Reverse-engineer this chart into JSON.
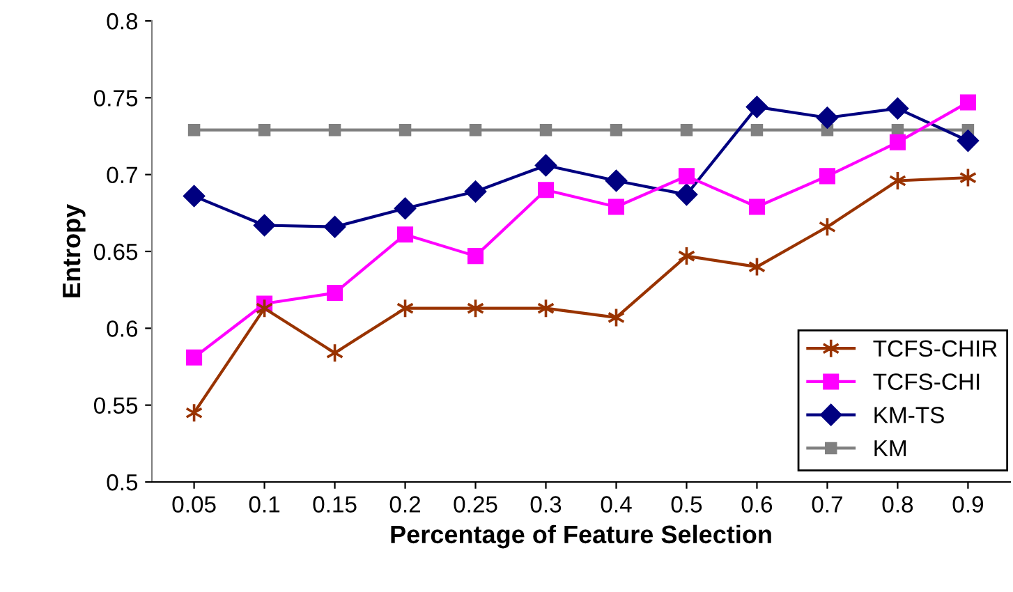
{
  "chart_data": {
    "type": "line",
    "xlabel": "Percentage of Feature Selection",
    "ylabel": "Entropy",
    "categories": [
      "0.05",
      "0.1",
      "0.15",
      "0.2",
      "0.25",
      "0.3",
      "0.4",
      "0.5",
      "0.6",
      "0.7",
      "0.8",
      "0.9"
    ],
    "series": [
      {
        "name": "TCFS-CHIR",
        "color": "#993300",
        "marker": "cross",
        "values": [
          0.545,
          0.613,
          0.584,
          0.613,
          0.613,
          0.613,
          0.607,
          0.647,
          0.64,
          0.666,
          0.696,
          0.698
        ]
      },
      {
        "name": "TCFS-CHI",
        "color": "#ff00ff",
        "marker": "square",
        "values": [
          0.581,
          0.616,
          0.623,
          0.661,
          0.647,
          0.69,
          0.679,
          0.699,
          0.679,
          0.699,
          0.721,
          0.747
        ]
      },
      {
        "name": "KM-TS",
        "color": "#000080",
        "marker": "diamond",
        "values": [
          0.686,
          0.667,
          0.666,
          0.678,
          0.689,
          0.706,
          0.696,
          0.687,
          0.744,
          0.737,
          0.743,
          0.722
        ]
      },
      {
        "name": "KM",
        "color": "#808080",
        "marker": "square",
        "values": [
          0.729,
          0.729,
          0.729,
          0.729,
          0.729,
          0.729,
          0.729,
          0.729,
          0.729,
          0.729,
          0.729,
          0.729
        ]
      }
    ],
    "ylim": [
      0.5,
      0.8
    ],
    "yticks": [
      0.5,
      0.55,
      0.6,
      0.65,
      0.7,
      0.75,
      0.8
    ],
    "grid": false,
    "legend": "bottom right",
    "line_style": "solid"
  }
}
